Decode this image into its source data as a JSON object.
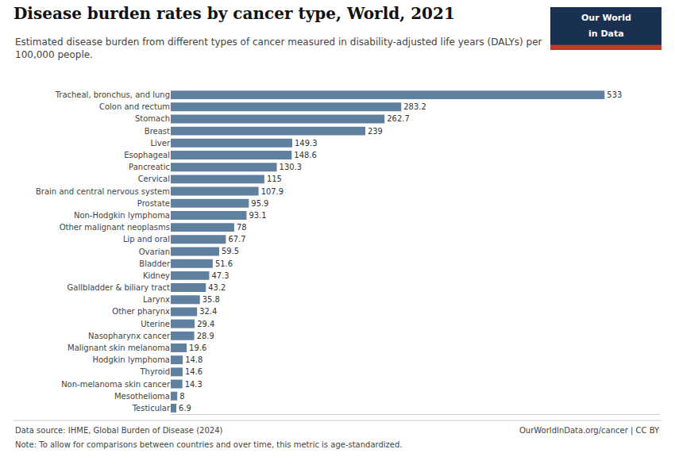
{
  "chart_data": {
    "type": "bar",
    "orientation": "horizontal",
    "title": "Disease burden rates by cancer type, World, 2021",
    "subtitle": "Estimated disease burden from different types of cancer measured in disability-adjusted life years (DALYs) per\n100,000 people.",
    "categories": [
      "Tracheal, bronchus, and lung",
      "Colon and rectum",
      "Stomach",
      "Breast",
      "Liver",
      "Esophageal",
      "Pancreatic",
      "Cervical",
      "Brain and central nervous system",
      "Prostate",
      "Non-Hodgkin lymphoma",
      "Other malignant neoplasms",
      "Lip and oral",
      "Ovarian",
      "Bladder",
      "Kidney",
      "Gallbladder & biliary tract",
      "Larynx",
      "Other pharynx",
      "Uterine",
      "Nasopharynx cancer",
      "Malignant skin melanoma",
      "Hodgkin lymphoma",
      "Thyroid",
      "Non-melanoma skin cancer",
      "Mesothelioma",
      "Testicular"
    ],
    "values": [
      533,
      283.2,
      262.7,
      239,
      149.3,
      148.6,
      130.3,
      115,
      107.9,
      95.9,
      93.1,
      78,
      67.7,
      59.5,
      51.6,
      47.3,
      43.2,
      35.8,
      32.4,
      29.4,
      28.9,
      19.6,
      14.8,
      14.6,
      14.3,
      8,
      6.9
    ],
    "color": "#6080a0",
    "xlim": [
      0,
      600
    ],
    "xticks": [],
    "tick_labels": "y",
    "grid": false,
    "data_labels": true,
    "source": "Data source: IHME, Global Burden of Disease (2024)",
    "note": "Note: To allow for comparisons between countries and over time, this metric is age-standardized.",
    "website": "OurWorldInData.org/cancer | CC BY",
    "logo": {
      "text": [
        "Our World",
        "in Data"
      ],
      "colors": [
        "#1a3050",
        "#c0392b"
      ]
    }
  }
}
